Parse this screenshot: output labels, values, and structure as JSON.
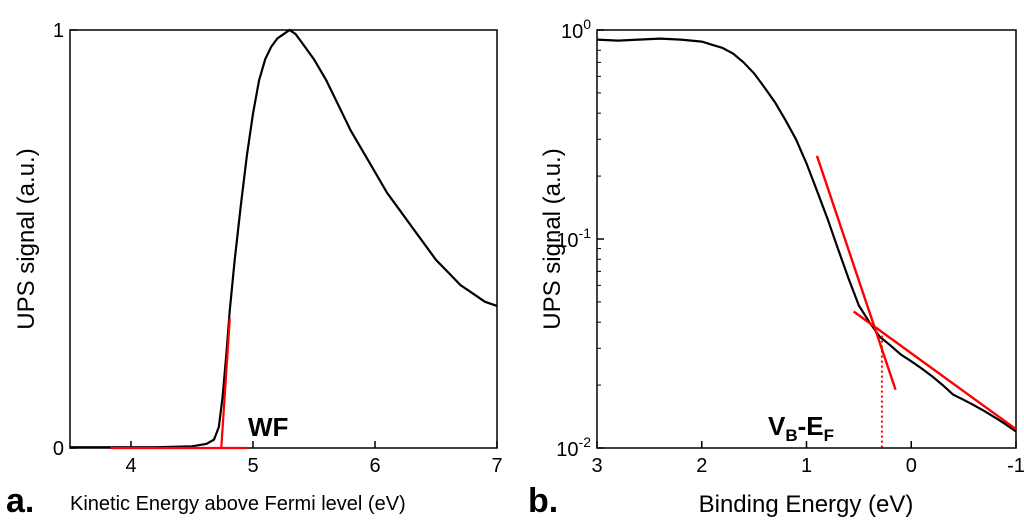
{
  "chart_data": [
    {
      "type": "line",
      "panel_label": "a.",
      "xlabel": "Kinetic Energy above Fermi level (eV)",
      "ylabel": "UPS signal (a.u.)",
      "xlim": [
        3.5,
        7
      ],
      "ylim": [
        0,
        1
      ],
      "x_ticks": [
        4,
        5,
        6,
        7
      ],
      "y_tick_labels": [
        "0",
        "1"
      ],
      "y_tick_values": [
        0,
        1
      ],
      "annotation": "WF",
      "series": [
        {
          "color": "#000000",
          "x": [
            3.5,
            3.8,
            4.2,
            4.5,
            4.62,
            4.68,
            4.72,
            4.75,
            4.78,
            4.81,
            4.85,
            4.9,
            4.95,
            5.0,
            5.05,
            5.1,
            5.15,
            5.2,
            5.25,
            5.3,
            5.35,
            5.4,
            5.5,
            5.6,
            5.7,
            5.8,
            5.9,
            6.0,
            6.1,
            6.2,
            6.3,
            6.4,
            6.5,
            6.6,
            6.7,
            6.8,
            6.9,
            7.0
          ],
          "y": [
            0.002,
            0.002,
            0.002,
            0.004,
            0.01,
            0.02,
            0.05,
            0.12,
            0.22,
            0.33,
            0.45,
            0.58,
            0.7,
            0.8,
            0.88,
            0.93,
            0.96,
            0.98,
            0.99,
            1.0,
            0.99,
            0.97,
            0.93,
            0.88,
            0.82,
            0.76,
            0.71,
            0.66,
            0.61,
            0.57,
            0.53,
            0.49,
            0.45,
            0.42,
            0.39,
            0.37,
            0.35,
            0.34
          ]
        }
      ],
      "fit_lines": [
        {
          "color": "#ff0000",
          "x": [
            3.83,
            4.95
          ],
          "y": [
            0.0,
            0.0
          ]
        },
        {
          "color": "#ff0000",
          "x": [
            4.74,
            4.81
          ],
          "y": [
            0.0,
            0.31
          ]
        }
      ]
    },
    {
      "type": "line",
      "panel_label": "b.",
      "xlabel": "Binding Energy (eV)",
      "ylabel": "UPS signal (a.u.)",
      "xlim": [
        3,
        -1
      ],
      "ylim": [
        0.01,
        1
      ],
      "yscale": "log",
      "x_ticks": [
        3,
        2,
        1,
        0,
        -1
      ],
      "y_tick_labels": [
        [
          "10",
          "-2"
        ],
        [
          "10",
          "-1"
        ],
        [
          "10",
          "0"
        ]
      ],
      "y_tick_values": [
        0.01,
        0.1,
        1
      ],
      "annotation": {
        "V": "V",
        "V_sub": "B",
        "dash": "-",
        "E": "E",
        "E_sub": "F"
      },
      "series": [
        {
          "color": "#000000",
          "x": [
            3.0,
            2.8,
            2.6,
            2.4,
            2.2,
            2.0,
            1.9,
            1.8,
            1.7,
            1.6,
            1.5,
            1.4,
            1.3,
            1.2,
            1.1,
            1.0,
            0.9,
            0.8,
            0.7,
            0.6,
            0.5,
            0.4,
            0.3,
            0.2,
            0.1,
            0.0,
            -0.1,
            -0.2,
            -0.3,
            -0.4,
            -0.5,
            -0.6,
            -0.7,
            -0.8,
            -0.9,
            -1.0
          ],
          "y": [
            0.9,
            0.89,
            0.9,
            0.91,
            0.9,
            0.88,
            0.85,
            0.82,
            0.77,
            0.7,
            0.62,
            0.53,
            0.45,
            0.37,
            0.3,
            0.23,
            0.17,
            0.125,
            0.09,
            0.065,
            0.048,
            0.04,
            0.034,
            0.031,
            0.028,
            0.026,
            0.024,
            0.022,
            0.02,
            0.018,
            0.017,
            0.016,
            0.015,
            0.014,
            0.013,
            0.012
          ]
        }
      ],
      "fit_lines": [
        {
          "color": "#ff0000",
          "x": [
            0.9,
            0.15
          ],
          "y": [
            0.25,
            0.019
          ]
        },
        {
          "color": "#ff0000",
          "x": [
            0.55,
            -1.0
          ],
          "y": [
            0.045,
            0.0123
          ]
        }
      ],
      "marker_line": {
        "color": "#ff0000",
        "style": "dotted",
        "x": 0.28
      }
    }
  ]
}
